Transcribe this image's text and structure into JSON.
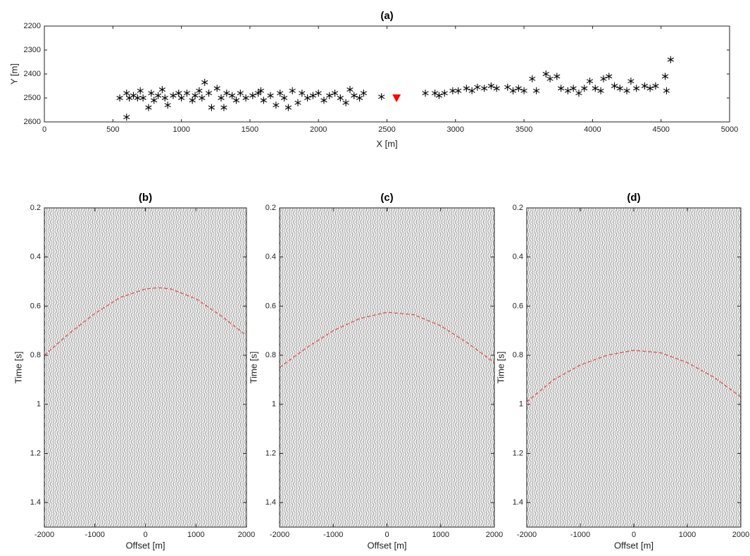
{
  "chart_data": [
    {
      "type": "scatter",
      "title": "(a)",
      "xlabel": "X [m]",
      "ylabel": "Y [m]",
      "xlim": [
        0,
        5000
      ],
      "xticks": [
        0,
        500,
        1000,
        1500,
        2000,
        2500,
        3000,
        3500,
        4000,
        4500,
        5000
      ],
      "ylim": [
        2200,
        2600
      ],
      "yticks": [
        2200,
        2300,
        2400,
        2500,
        2600
      ],
      "y_reversed": true,
      "series": [
        {
          "marker": "asterisk",
          "color": "#000000",
          "x": [
            550,
            600,
            620,
            650,
            680,
            700,
            720,
            760,
            780,
            800,
            830,
            860,
            880,
            900,
            940,
            980,
            1000,
            1040,
            1080,
            1100,
            1130,
            1150,
            1170,
            1200,
            1220,
            1260,
            1290,
            1310,
            1330,
            1370,
            1400,
            1430,
            1470,
            1520,
            1560,
            1580,
            1600,
            1650,
            1690,
            1720,
            1750,
            1780,
            1810,
            1850,
            1880,
            1920,
            1960,
            2000,
            2040,
            2080,
            2120,
            2160,
            2200,
            2230,
            2260,
            2300,
            2330,
            600,
            2460,
            2780,
            2850,
            2880,
            2920,
            2980,
            3020,
            3080,
            3120,
            3160,
            3210,
            3260,
            3300,
            3380,
            3420,
            3460,
            3500,
            3560,
            3590,
            3660,
            3690,
            3740,
            3770,
            3820,
            3860,
            3900,
            3940,
            3980,
            4020,
            4060,
            4080,
            4120,
            4160,
            4200,
            4250,
            4280,
            4320,
            4380,
            4420,
            4460,
            4530,
            4540,
            4570
          ],
          "values": [
            2500,
            2480,
            2500,
            2490,
            2500,
            2470,
            2500,
            2540,
            2480,
            2510,
            2490,
            2465,
            2500,
            2530,
            2490,
            2480,
            2500,
            2480,
            2510,
            2490,
            2470,
            2500,
            2435,
            2480,
            2540,
            2460,
            2500,
            2540,
            2480,
            2490,
            2510,
            2480,
            2500,
            2490,
            2480,
            2470,
            2510,
            2490,
            2530,
            2480,
            2500,
            2540,
            2470,
            2520,
            2480,
            2500,
            2490,
            2480,
            2510,
            2490,
            2480,
            2500,
            2520,
            2465,
            2490,
            2500,
            2480,
            2580,
            2495,
            2480,
            2480,
            2490,
            2480,
            2470,
            2470,
            2460,
            2470,
            2455,
            2460,
            2450,
            2460,
            2455,
            2470,
            2460,
            2470,
            2420,
            2470,
            2400,
            2420,
            2410,
            2460,
            2470,
            2460,
            2480,
            2460,
            2430,
            2460,
            2470,
            2420,
            2410,
            2450,
            2460,
            2470,
            2430,
            2460,
            2450,
            2460,
            2450,
            2410,
            2470,
            2340
          ]
        },
        {
          "marker": "triangle",
          "color": "#ff0000",
          "x": [
            2570
          ],
          "values": [
            2500
          ]
        }
      ]
    },
    {
      "type": "line",
      "title": "(b)",
      "xlabel": "Offset [m]",
      "ylabel": "Time [s]",
      "xlim": [
        -2000,
        2000
      ],
      "xticks": [
        -2000,
        -1000,
        0,
        1000,
        2000
      ],
      "ylim": [
        0.2,
        1.5
      ],
      "yticks": [
        0.2,
        0.4,
        0.6,
        0.8,
        1,
        1.2,
        1.4
      ],
      "y_reversed": true,
      "series": [
        {
          "color": "#e05050",
          "dashed": true,
          "x": [
            -2000,
            -1500,
            -1000,
            -500,
            0,
            250,
            500,
            1000,
            1500,
            2000
          ],
          "values": [
            0.8,
            0.71,
            0.63,
            0.565,
            0.53,
            0.525,
            0.53,
            0.57,
            0.64,
            0.72
          ]
        }
      ]
    },
    {
      "type": "line",
      "title": "(c)",
      "xlabel": "Offset [m]",
      "ylabel": "Time [s]",
      "xlim": [
        -2000,
        2000
      ],
      "xticks": [
        -2000,
        -1000,
        0,
        1000,
        2000
      ],
      "ylim": [
        0.2,
        1.5
      ],
      "yticks": [
        0.2,
        0.4,
        0.6,
        0.8,
        1,
        1.2,
        1.4
      ],
      "y_reversed": true,
      "series": [
        {
          "color": "#e05050",
          "dashed": true,
          "x": [
            -2000,
            -1500,
            -1000,
            -500,
            0,
            500,
            1000,
            1500,
            2000
          ],
          "values": [
            0.85,
            0.77,
            0.7,
            0.65,
            0.625,
            0.635,
            0.68,
            0.75,
            0.83
          ]
        }
      ]
    },
    {
      "type": "line",
      "title": "(d)",
      "xlabel": "Offset [m]",
      "ylabel": "Time [s]",
      "xlim": [
        -2000,
        2000
      ],
      "xticks": [
        -2000,
        -1000,
        0,
        1000,
        2000
      ],
      "ylim": [
        0.2,
        1.5
      ],
      "yticks": [
        0.2,
        0.4,
        0.6,
        0.8,
        1,
        1.2,
        1.4
      ],
      "y_reversed": true,
      "series": [
        {
          "color": "#e05050",
          "dashed": true,
          "x": [
            -2000,
            -1500,
            -1000,
            -500,
            0,
            500,
            1000,
            1500,
            2000
          ],
          "values": [
            0.99,
            0.9,
            0.84,
            0.8,
            0.78,
            0.79,
            0.83,
            0.89,
            0.97
          ]
        }
      ]
    }
  ]
}
